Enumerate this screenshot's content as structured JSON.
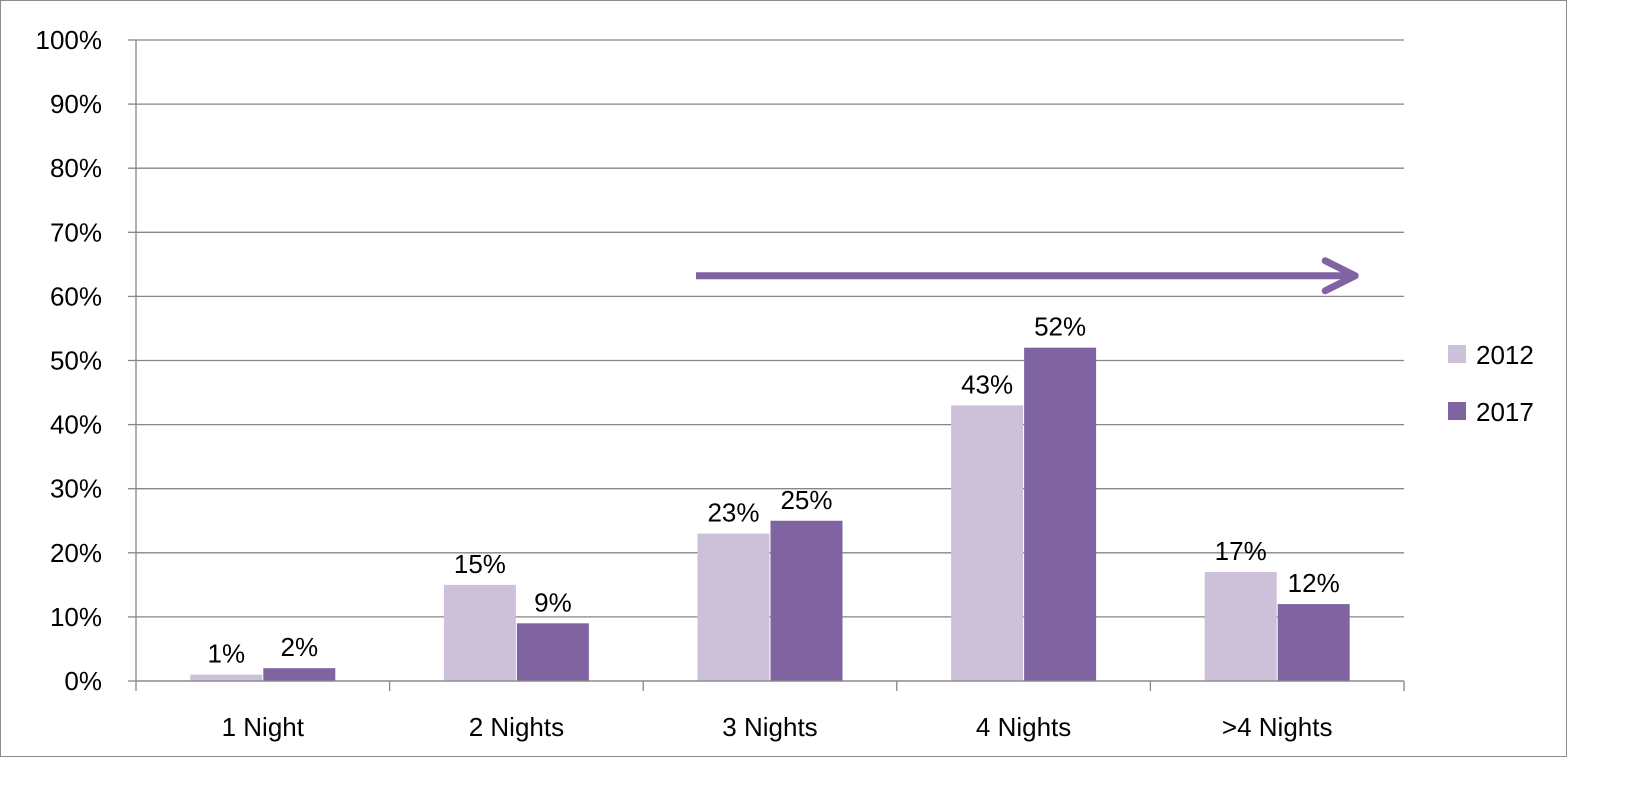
{
  "chart_data": {
    "type": "bar",
    "title": "",
    "xlabel": "",
    "ylabel": "",
    "categories": [
      "1 Night",
      "2 Nights",
      "3 Nights",
      "4 Nights",
      ">4 Nights"
    ],
    "series": [
      {
        "name": "2012",
        "values": [
          1,
          15,
          23,
          43,
          17
        ],
        "labels": [
          "1%",
          "15%",
          "23%",
          "43%",
          "17%"
        ],
        "color": "#ccc1d9"
      },
      {
        "name": "2017",
        "values": [
          2,
          9,
          25,
          52,
          12
        ],
        "labels": [
          "2%",
          "9%",
          "25%",
          "52%",
          "12%"
        ],
        "color": "#8064a2"
      }
    ],
    "ylim": [
      0,
      100
    ],
    "yticks": [
      0,
      10,
      20,
      30,
      40,
      50,
      60,
      70,
      80,
      90,
      100
    ],
    "ytick_labels": [
      "0%",
      "10%",
      "20%",
      "30%",
      "40%",
      "50%",
      "60%",
      "70%",
      "80%",
      "90%",
      "100%"
    ],
    "grid": true,
    "legend_position": "right",
    "annotation": {
      "type": "arrow",
      "direction": "right",
      "from_category": "3 Nights",
      "to_category": ">4 Nights",
      "level": 64,
      "color": "#8064a2"
    },
    "colors": {
      "gridline": "#868686",
      "axis": "#868686"
    }
  }
}
